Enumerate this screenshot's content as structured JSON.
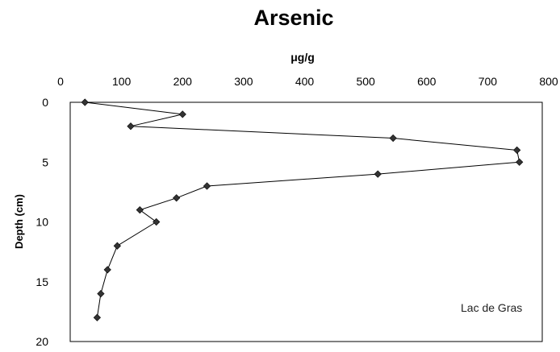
{
  "chart_data": {
    "type": "line",
    "title": "Arsenic",
    "xlabel": "μg/g",
    "ylabel": "Depth (cm)",
    "xlim": [
      0,
      800
    ],
    "ylim": [
      0,
      20
    ],
    "x_axis_position": "top",
    "y_axis_inverted": true,
    "xticks": [
      "0",
      "100",
      "200",
      "300",
      "400",
      "500",
      "600",
      "700",
      "800"
    ],
    "yticks": [
      "0",
      "5",
      "10",
      "15",
      "20"
    ],
    "grid": false,
    "legend": null,
    "annotation": "Lac de Gras",
    "series": [
      {
        "color": "#000000",
        "marker": "diamond",
        "points": [
          {
            "value": 40,
            "depth": 0
          },
          {
            "value": 200,
            "depth": 1
          },
          {
            "value": 115,
            "depth": 2
          },
          {
            "value": 545,
            "depth": 3
          },
          {
            "value": 748,
            "depth": 4
          },
          {
            "value": 752,
            "depth": 5
          },
          {
            "value": 520,
            "depth": 6
          },
          {
            "value": 240,
            "depth": 7
          },
          {
            "value": 190,
            "depth": 8
          },
          {
            "value": 130,
            "depth": 9
          },
          {
            "value": 157,
            "depth": 10
          },
          {
            "value": 93,
            "depth": 12
          },
          {
            "value": 77,
            "depth": 14
          },
          {
            "value": 66,
            "depth": 16
          },
          {
            "value": 60,
            "depth": 18
          }
        ]
      }
    ]
  }
}
